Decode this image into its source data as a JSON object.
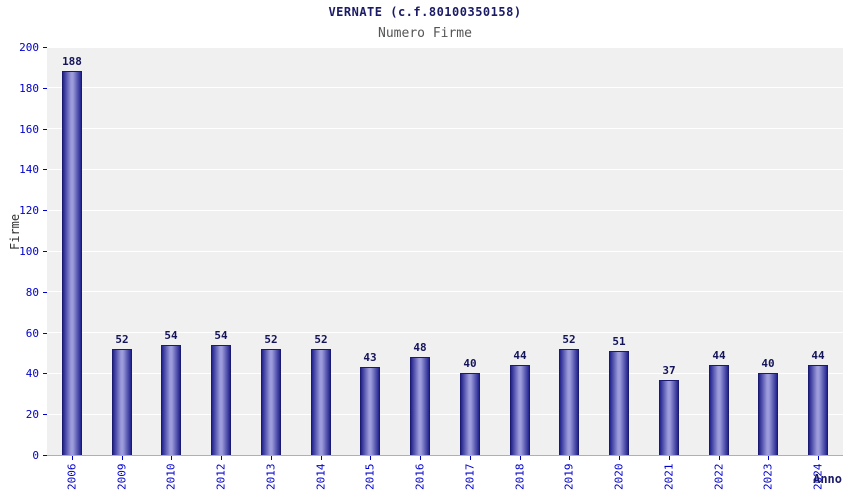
{
  "chart_data": {
    "type": "bar",
    "title": "VERNATE (c.f.80100350158)",
    "subtitle": "Numero Firme",
    "xlabel": "Anno",
    "ylabel": "Firme",
    "categories": [
      "2006",
      "2009",
      "2010",
      "2012",
      "2013",
      "2014",
      "2015",
      "2016",
      "2017",
      "2018",
      "2019",
      "2020",
      "2021",
      "2022",
      "2023",
      "2024"
    ],
    "values": [
      188,
      52,
      54,
      54,
      52,
      52,
      43,
      48,
      40,
      44,
      52,
      51,
      37,
      44,
      40,
      44
    ],
    "ylim": [
      0,
      200
    ],
    "ytick_step": 20,
    "grid": true,
    "legend_position": "none",
    "colors": {
      "bar_dark": "#23238e",
      "bar_light": "#9c9cdc",
      "title": "#1a1a66",
      "subtitle": "#555555",
      "axis_tick_label": "#0000cc",
      "value_label": "#14145a",
      "plot_bg": "#f0f0f0",
      "gridline": "#ffffff"
    }
  }
}
